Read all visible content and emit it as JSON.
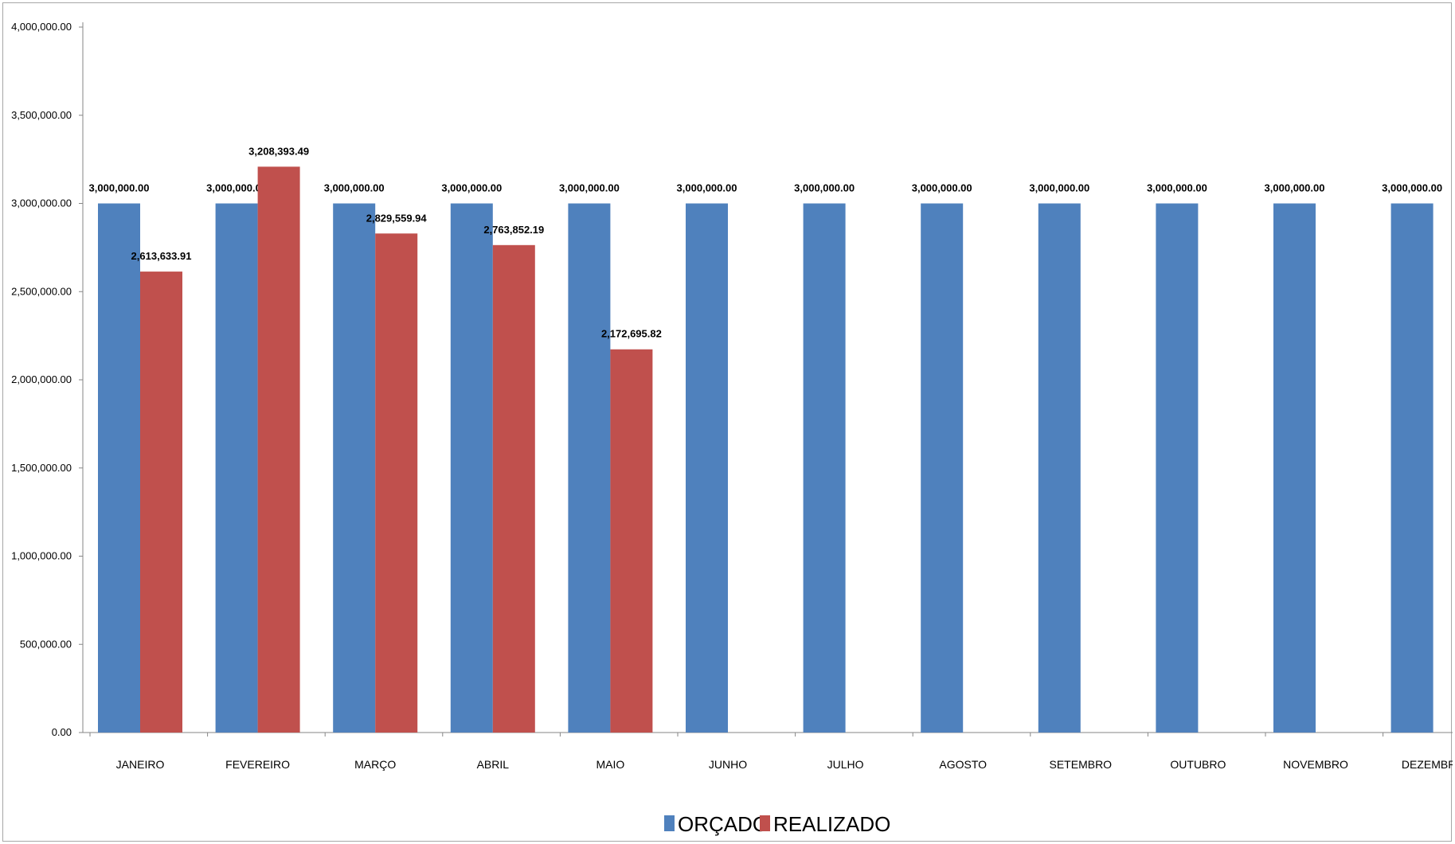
{
  "chart_data": {
    "type": "bar",
    "categories": [
      "JANEIRO",
      "FEVEREIRO",
      "MARÇO",
      "ABRIL",
      "MAIO",
      "JUNHO",
      "JULHO",
      "AGOSTO",
      "SETEMBRO",
      "OUTUBRO",
      "NOVEMBRO",
      "DEZEMBRO"
    ],
    "series": [
      {
        "name": "ORÇADO",
        "color": "#4f81bd",
        "values": [
          3000000,
          3000000,
          3000000,
          3000000,
          3000000,
          3000000,
          3000000,
          3000000,
          3000000,
          3000000,
          3000000,
          3000000
        ],
        "labels": [
          "3,000,000.00",
          "3,000,000.00",
          "3,000,000.00",
          "3,000,000.00",
          "3,000,000.00",
          "3,000,000.00",
          "3,000,000.00",
          "3,000,000.00",
          "3,000,000.00",
          "3,000,000.00",
          "3,000,000.00",
          "3,000,000.00"
        ]
      },
      {
        "name": "REALIZADO",
        "color": "#c0504d",
        "values": [
          2613633.91,
          3208393.49,
          2829559.94,
          2763852.19,
          2172695.82,
          null,
          null,
          null,
          null,
          null,
          null,
          null
        ],
        "labels": [
          "2,613,633.91",
          "3,208,393.49",
          "2,829,559.94",
          "2,763,852.19",
          "2,172,695.82",
          "",
          "",
          "",
          "",
          "",
          "",
          ""
        ]
      }
    ],
    "title": "",
    "xlabel": "",
    "ylabel": "",
    "ylim": [
      0,
      4000000
    ],
    "yticks": [
      0,
      500000,
      1000000,
      1500000,
      2000000,
      2500000,
      3000000,
      3500000,
      4000000
    ],
    "ytick_labels": [
      "0.00",
      "500,000.00",
      "1,000,000.00",
      "1,500,000.00",
      "2,000,000.00",
      "2,500,000.00",
      "3,000,000.00",
      "3,500,000.00",
      "4,000,000.00"
    ],
    "grid": false,
    "legend": "bottom-center"
  }
}
